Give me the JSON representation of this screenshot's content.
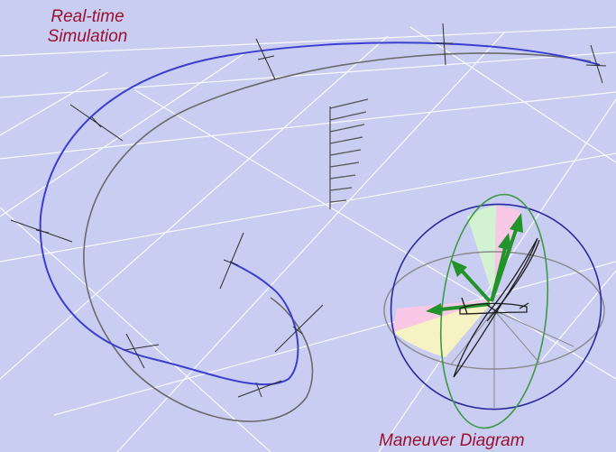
{
  "labels": {
    "title_line1": "Real-time",
    "title_line2": "Simulation",
    "diagram_label": "Maneuver Diagram"
  },
  "colors": {
    "background": "#c9cdf1",
    "grid": "#ffffff",
    "trajectory": "#3a3fcf",
    "shadow": "#6a6a6a",
    "aircraft": "#2e2e2e",
    "arrows": "#22922a",
    "pitch_ring": "#3e9a48",
    "roll_ring": "#2a2a9e",
    "horizon_ring": "#8a8a8a",
    "sector_pink": "#f8c8e6",
    "sector_green": "#d2f2d2",
    "sector_yellow": "#f6f2c4",
    "label_text": "#9a1030"
  }
}
